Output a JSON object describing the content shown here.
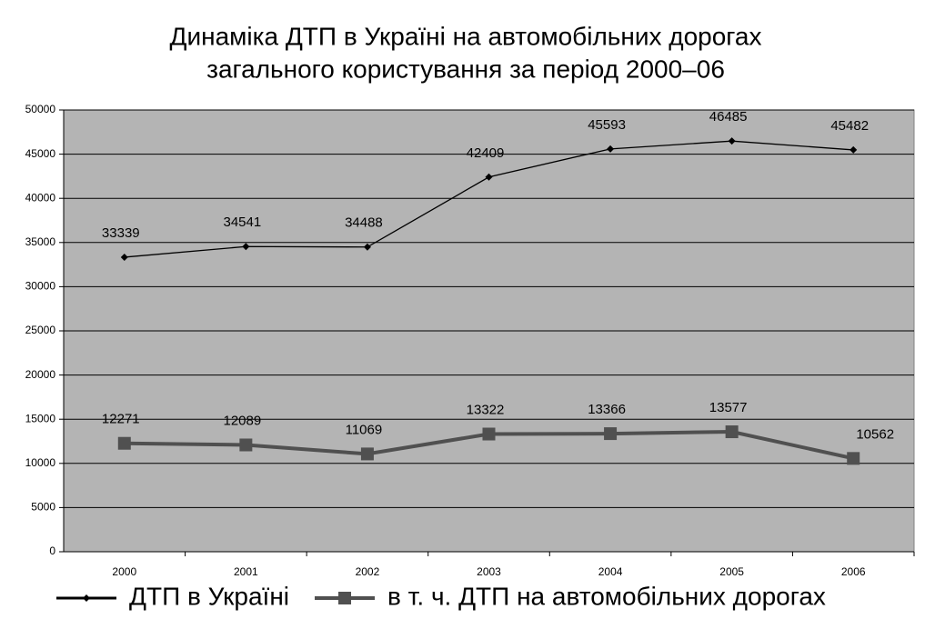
{
  "chart_data": {
    "type": "line",
    "title": [
      "Динаміка ДТП в Україні на автомобільних дорогах",
      "загального користування за період 2000–06"
    ],
    "categories": [
      "2000",
      "2001",
      "2002",
      "2003",
      "2004",
      "2005",
      "2006"
    ],
    "series": [
      {
        "name": "ДТП в Україні",
        "color": "#000000",
        "marker": "diamond",
        "values": [
          33339,
          34541,
          34488,
          42409,
          45593,
          46485,
          45482
        ]
      },
      {
        "name": "в т. ч. ДТП на автомобільних дорогах",
        "color": "#505050",
        "marker": "square",
        "values": [
          12271,
          12089,
          11069,
          13322,
          13366,
          13577,
          10562
        ]
      }
    ],
    "ylim": [
      0,
      50000
    ],
    "yticks": [
      0,
      5000,
      10000,
      15000,
      20000,
      25000,
      30000,
      35000,
      40000,
      45000,
      50000
    ],
    "grid": true,
    "legend": "bottom",
    "plot_background": "#b4b4b4"
  }
}
